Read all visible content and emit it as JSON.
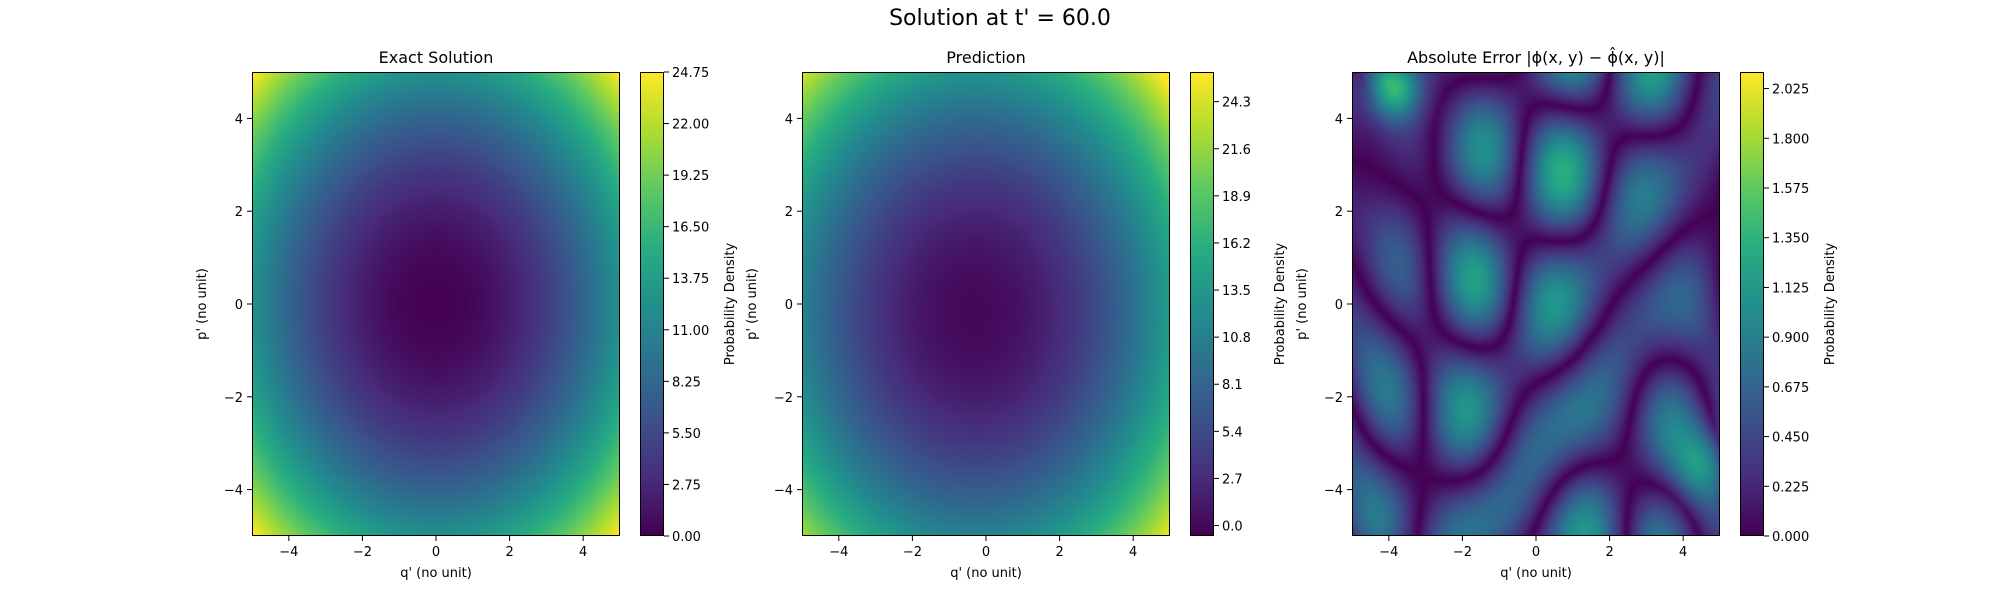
{
  "figure": {
    "suptitle": "Solution at t' = 60.0"
  },
  "chart_data": [
    {
      "type": "heatmap",
      "title": "Exact Solution",
      "xlabel": "q' (no unit)",
      "ylabel": "p' (no unit)",
      "xlim": [
        -5,
        5
      ],
      "ylim": [
        -5,
        5
      ],
      "xticks": [
        "−4",
        "−2",
        "0",
        "2",
        "4"
      ],
      "xtick_values": [
        -4,
        -2,
        0,
        2,
        4
      ],
      "yticks": [
        "−4",
        "−2",
        "0",
        "2",
        "4"
      ],
      "ytick_values": [
        -4,
        -2,
        0,
        2,
        4
      ],
      "colormap": "viridis",
      "colorbar": {
        "label": "Probability Density",
        "range": [
          0.0,
          24.75
        ],
        "ticks": [
          "0.00",
          "2.75",
          "5.50",
          "8.25",
          "11.00",
          "13.75",
          "16.50",
          "19.25",
          "22.00",
          "24.75"
        ],
        "tick_values": [
          0.0,
          2.75,
          5.5,
          8.25,
          11.0,
          13.75,
          16.5,
          19.25,
          22.0,
          24.75
        ]
      },
      "field": "quadratic bowl, minimum 0 at (0,0), approx 24.75 at corners"
    },
    {
      "type": "heatmap",
      "title": "Prediction",
      "xlabel": "q' (no unit)",
      "ylabel": "p' (no unit)",
      "xlim": [
        -5,
        5
      ],
      "ylim": [
        -5,
        5
      ],
      "xticks": [
        "−4",
        "−2",
        "0",
        "2",
        "4"
      ],
      "xtick_values": [
        -4,
        -2,
        0,
        2,
        4
      ],
      "yticks": [
        "−4",
        "−2",
        "0",
        "2",
        "4"
      ],
      "ytick_values": [
        -4,
        -2,
        0,
        2,
        4
      ],
      "colormap": "viridis",
      "colorbar": {
        "label": "Probability Density",
        "range": [
          -0.6,
          26.0
        ],
        "ticks": [
          "0.0",
          "2.7",
          "5.4",
          "8.1",
          "10.8",
          "13.5",
          "16.2",
          "18.9",
          "21.6",
          "24.3"
        ],
        "tick_values": [
          0.0,
          2.7,
          5.4,
          8.1,
          10.8,
          13.5,
          16.2,
          18.9,
          21.6,
          24.3
        ]
      },
      "field": "quadratic bowl, minimum near (-0.3,-0.2)"
    },
    {
      "type": "heatmap",
      "title": "Absolute Error |ϕ(x, y) − ϕ̂(x, y)|",
      "xlabel": "q' (no unit)",
      "ylabel": "p' (no unit)",
      "xlim": [
        -5,
        5
      ],
      "ylim": [
        -5,
        5
      ],
      "xticks": [
        "−4",
        "−2",
        "0",
        "2",
        "4"
      ],
      "xtick_values": [
        -4,
        -2,
        0,
        2,
        4
      ],
      "yticks": [
        "−4",
        "−2",
        "0",
        "2",
        "4"
      ],
      "ytick_values": [
        -4,
        -2,
        0,
        2,
        4
      ],
      "colormap": "viridis",
      "colorbar": {
        "label": "Probability Density",
        "range": [
          0.0,
          2.1
        ],
        "ticks": [
          "0.000",
          "0.225",
          "0.450",
          "0.675",
          "0.900",
          "1.125",
          "1.350",
          "1.575",
          "1.800",
          "2.025"
        ],
        "tick_values": [
          0.0,
          0.225,
          0.45,
          0.675,
          0.9,
          1.125,
          1.35,
          1.575,
          1.8,
          2.025
        ]
      },
      "field": "irregular blobs, peak ~2.05 near (-3.9, 4.7)"
    }
  ]
}
